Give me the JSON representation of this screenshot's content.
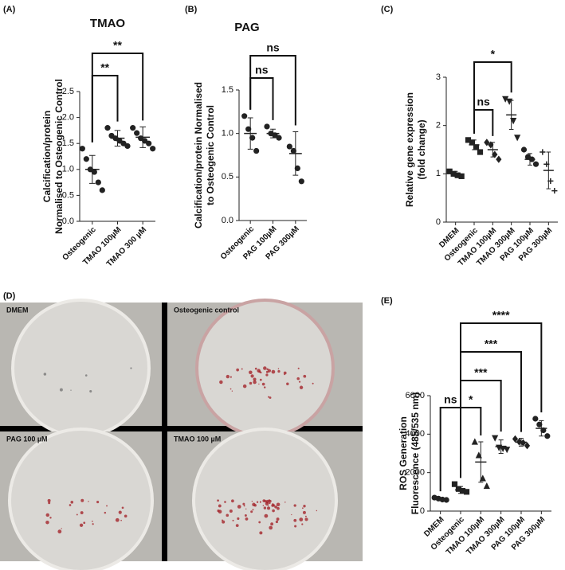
{
  "chart_data": [
    {
      "type": "dot",
      "panel": "(A)",
      "title": "TMAO",
      "ylabel": [
        "Calcification/protein",
        "Normalised to Osteogenic Control"
      ],
      "categories": [
        "Osteogenic",
        "TMAO 100µM",
        "TMAO 300 µM"
      ],
      "markers": [
        "circle",
        "circle",
        "circle"
      ],
      "points": [
        [
          1.4,
          1.2,
          1.0,
          0.95,
          0.75,
          0.6
        ],
        [
          1.8,
          1.65,
          1.6,
          1.55,
          1.5,
          1.45
        ],
        [
          1.8,
          1.7,
          1.6,
          1.55,
          1.5,
          1.4
        ]
      ],
      "means": [
        1.0,
        1.6,
        1.62
      ],
      "sds": [
        0.27,
        0.15,
        0.2
      ],
      "ylim": [
        0,
        2.5
      ],
      "yticks": [
        {
          "value": 0,
          "label": "0.0"
        },
        0.5,
        {
          "value": 1,
          "label": "1.0"
        },
        1.5,
        {
          "value": 2,
          "label": "2.0"
        },
        2.5
      ],
      "brackets": [
        {
          "from": 0,
          "to": 1,
          "label": "**"
        },
        {
          "from": 0,
          "to": 2,
          "label": "**"
        }
      ]
    },
    {
      "type": "dot",
      "panel": "(B)",
      "title": "PAG",
      "ylabel": [
        "Calcification/protein Normalised",
        "to Osteogenic Control"
      ],
      "categories": [
        "Osteogenic",
        "PAG 100µM",
        "PAG 300µM"
      ],
      "markers": [
        "circle",
        "circle",
        "circle"
      ],
      "points": [
        [
          1.2,
          1.05,
          0.95,
          0.8
        ],
        [
          1.08,
          1.0,
          0.98,
          0.95
        ],
        [
          0.85,
          0.8,
          0.6,
          0.45
        ]
      ],
      "means": [
        1.0,
        1.0,
        0.77
      ],
      "sds": [
        0.18,
        0.05,
        0.25
      ],
      "ylim": [
        0,
        1.5
      ],
      "yticks": [
        {
          "value": 0,
          "label": "0.0"
        },
        0.5,
        {
          "value": 1,
          "label": "1.0"
        },
        1.5
      ],
      "brackets": [
        {
          "from": 0,
          "to": 1,
          "label": "ns"
        },
        {
          "from": 0,
          "to": 2,
          "label": "ns"
        }
      ]
    },
    {
      "type": "dot",
      "panel": "(C)",
      "ylabel": [
        "Relative gene expression",
        "(fold change)"
      ],
      "categories": [
        "DMEM",
        "Osteogenic",
        "TMAO 100µM",
        "TMAO 300µM",
        "PAG 100µM",
        "PAG 300µM"
      ],
      "markers": [
        "square",
        "square",
        "diamond",
        "triangle-down",
        "circle",
        "plus"
      ],
      "points": [
        [
          1.05,
          1.0,
          0.97,
          0.95
        ],
        [
          1.7,
          1.65,
          1.55,
          1.45
        ],
        [
          1.65,
          1.6,
          1.4,
          1.3
        ],
        [
          2.55,
          2.5,
          2.1,
          1.75
        ],
        [
          1.5,
          1.35,
          1.3,
          1.2
        ],
        [
          1.45,
          1.2,
          0.85,
          0.65
        ]
      ],
      "means": [
        1.0,
        1.6,
        1.5,
        2.22,
        1.3,
        1.07
      ],
      "sds": [
        0.05,
        0.1,
        0.15,
        0.3,
        0.12,
        0.38
      ],
      "ylim": [
        0,
        3
      ],
      "yticks": [
        0,
        1,
        2,
        3
      ],
      "brackets": [
        {
          "from": 1,
          "to": 2,
          "label": "ns"
        },
        {
          "from": 1,
          "to": 3,
          "label": "*"
        }
      ]
    },
    {
      "type": "dot",
      "panel": "(E)",
      "ylabel": [
        "ROS Generation",
        "Fluorescence (485/535 nm)"
      ],
      "categories": [
        "DMEM",
        "Osteogenic",
        "TMAO 100µM",
        "TMAO 300µM",
        "PAG 100µM",
        "PAG 300µM"
      ],
      "markers": [
        "circle",
        "square",
        "triangle",
        "triangle-down",
        "diamond",
        "circle"
      ],
      "points": [
        [
          700,
          650,
          600,
          580
        ],
        [
          1400,
          1150,
          1050,
          1000
        ],
        [
          3600,
          2900,
          1700,
          1300
        ],
        [
          3800,
          3300,
          3250,
          3200
        ],
        [
          3750,
          3600,
          3550,
          3400
        ],
        [
          4800,
          4500,
          4200,
          3900
        ]
      ],
      "means": [
        630,
        1100,
        2550,
        3350,
        3580,
        4300
      ],
      "sds": [
        50,
        180,
        1050,
        350,
        200,
        400
      ],
      "ylim": [
        0,
        6000
      ],
      "yticks": [
        0,
        2000,
        4000,
        6000
      ],
      "brackets": [
        {
          "from": 0,
          "to": 1,
          "label": "ns"
        },
        {
          "from": 1,
          "to": 2,
          "label": "*"
        },
        {
          "from": 1,
          "to": 3,
          "label": "***"
        },
        {
          "from": 1,
          "to": 4,
          "label": "***"
        },
        {
          "from": 1,
          "to": 5,
          "label": "****"
        }
      ]
    }
  ],
  "panel_d": {
    "panel": "(D)",
    "wells": [
      "DMEM",
      "Osteogenic control",
      "PAG 100 µM",
      "TMAO 100 µM"
    ]
  }
}
